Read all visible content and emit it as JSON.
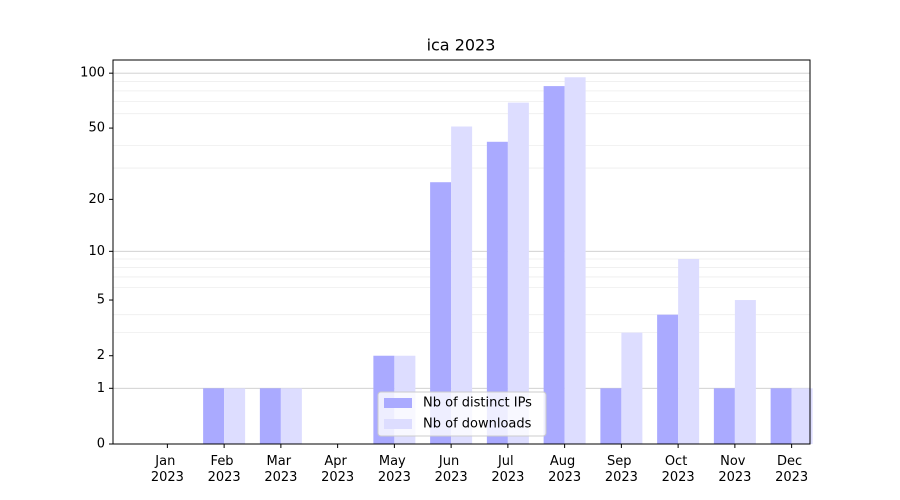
{
  "chart_data": {
    "type": "bar",
    "title": "ica 2023",
    "categories": [
      "Jan\n2023",
      "Feb\n2023",
      "Mar\n2023",
      "Apr\n2023",
      "May\n2023",
      "Jun\n2023",
      "Jul\n2023",
      "Aug\n2023",
      "Sep\n2023",
      "Oct\n2023",
      "Nov\n2023",
      "Dec\n2023"
    ],
    "series": [
      {
        "name": "Nb of distinct IPs",
        "color": "#aaaaff",
        "values": [
          0,
          1,
          1,
          0,
          2,
          25,
          42,
          85,
          1,
          4,
          1,
          1
        ]
      },
      {
        "name": "Nb of downloads",
        "color": "#ddddff",
        "values": [
          0,
          1,
          1,
          0,
          2,
          51,
          69,
          95,
          3,
          9,
          5,
          1
        ]
      }
    ],
    "yscale": "log1p",
    "ylim": [
      0,
      118
    ],
    "yticks": [
      0,
      1,
      2,
      5,
      10,
      20,
      50,
      100
    ],
    "major_grid": [
      1,
      10,
      100
    ],
    "minor_grid": [
      3,
      4,
      6,
      7,
      8,
      9,
      30,
      40,
      60,
      70,
      80,
      90
    ],
    "grid": true,
    "legend": "lower center"
  }
}
